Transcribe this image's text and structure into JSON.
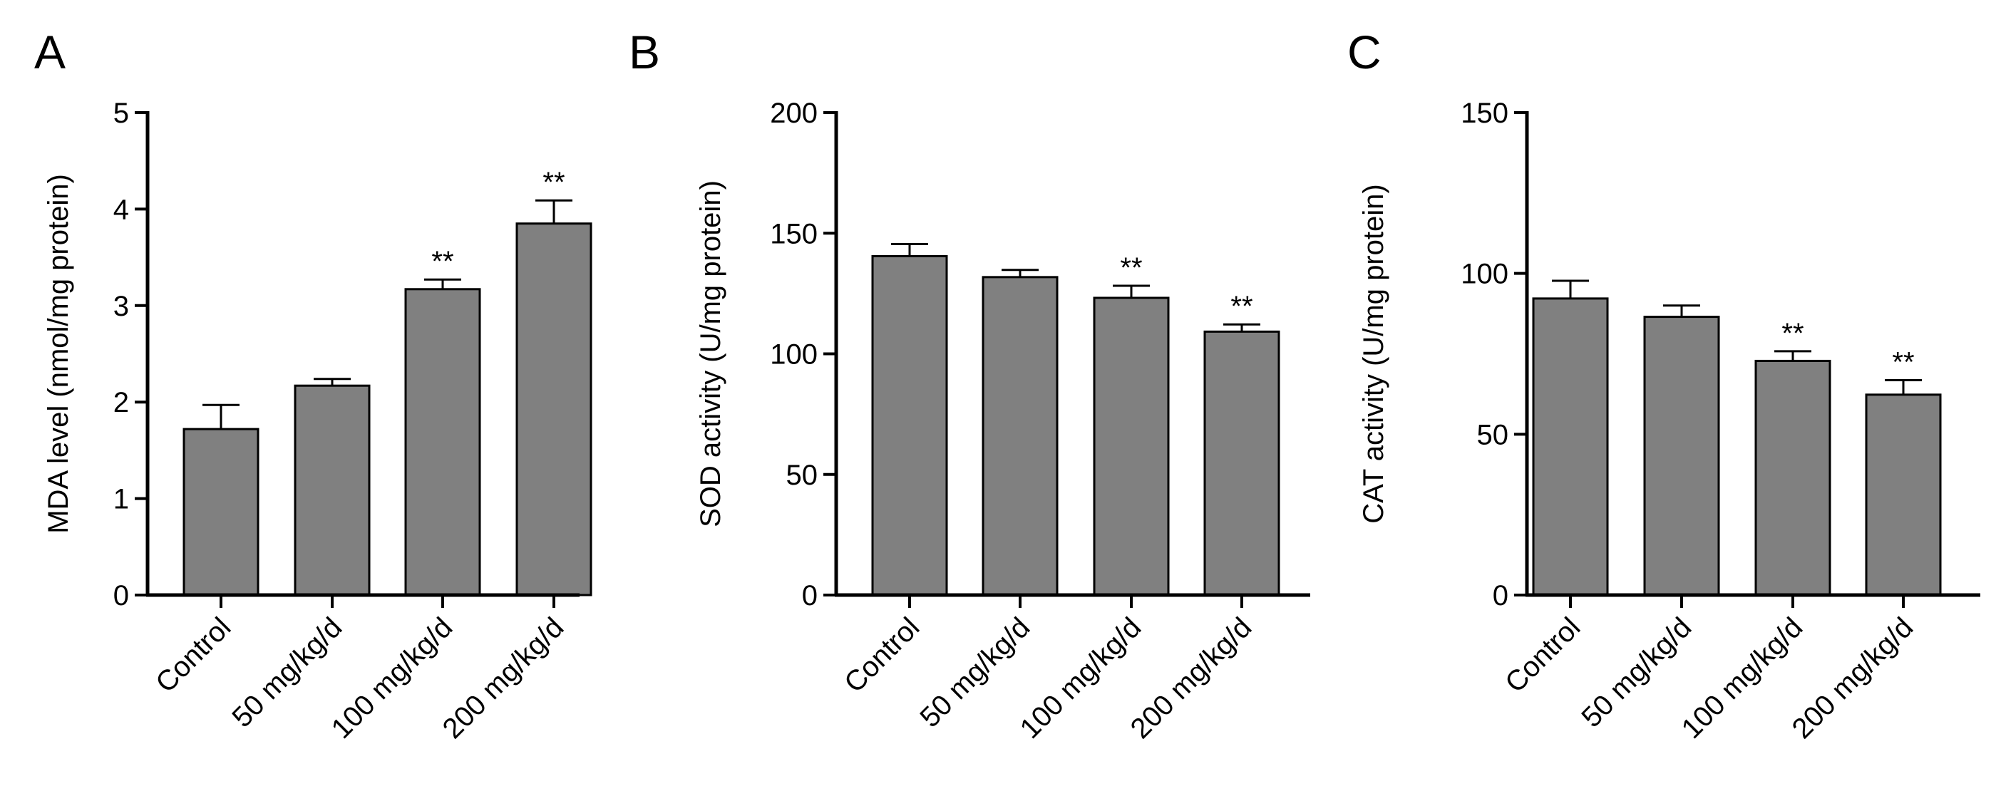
{
  "chart_data": [
    {
      "type": "bar",
      "panel": "A",
      "categories": [
        "Control",
        "50 mg/kg/d",
        "100 mg/kg/d",
        "200 mg/kg/d"
      ],
      "values": [
        1.72,
        2.17,
        3.17,
        3.85
      ],
      "errors": [
        0.25,
        0.07,
        0.1,
        0.24
      ],
      "significance": [
        "",
        "",
        "**",
        "**"
      ],
      "ylabel": "MDA level (nmol/mg protein)",
      "xlabel": "",
      "ylim": [
        0,
        5
      ],
      "yticks": [
        0,
        1,
        2,
        3,
        4,
        5
      ]
    },
    {
      "type": "bar",
      "panel": "B",
      "categories": [
        "Control",
        "50 mg/kg/d",
        "100 mg/kg/d",
        "200 mg/kg/d"
      ],
      "values": [
        140.5,
        131.8,
        123.2,
        109.2
      ],
      "errors": [
        5,
        3,
        5,
        3
      ],
      "significance": [
        "",
        "",
        "**",
        "**"
      ],
      "ylabel": "SOD activity (U/mg protein)",
      "xlabel": "",
      "ylim": [
        0,
        200
      ],
      "yticks": [
        0,
        50,
        100,
        150,
        200
      ]
    },
    {
      "type": "bar",
      "panel": "C",
      "categories": [
        "Control",
        "50 mg/kg/d",
        "100 mg/kg/d",
        "200 mg/kg/d"
      ],
      "values": [
        92.2,
        86.5,
        72.8,
        62.3
      ],
      "errors": [
        5.5,
        3.5,
        3,
        4.5
      ],
      "significance": [
        "",
        "",
        "**",
        "**"
      ],
      "ylabel": "CAT activity (U/mg protein)",
      "xlabel": "",
      "ylim": [
        0,
        150
      ],
      "yticks": [
        0,
        50,
        100,
        150
      ]
    }
  ],
  "colors": {
    "bar_fill": "#808080",
    "bar_stroke": "#000000",
    "axis": "#000000"
  }
}
